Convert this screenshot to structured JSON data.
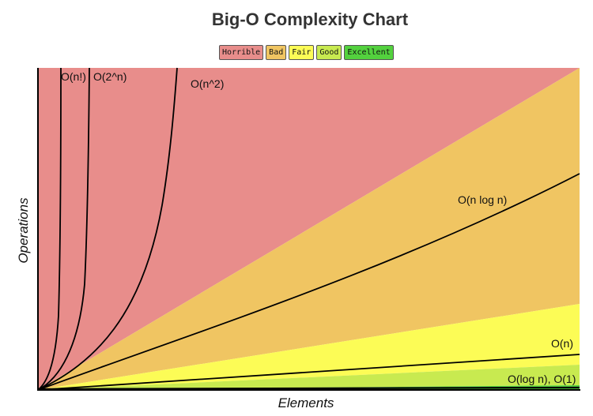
{
  "chart_data": {
    "type": "area",
    "title": "Big-O Complexity Chart",
    "xlabel": "Elements",
    "ylabel": "Operations",
    "legend": [
      {
        "label": "Horrible",
        "color": "#e88d8b"
      },
      {
        "label": "Bad",
        "color": "#f0c562"
      },
      {
        "label": "Fair",
        "color": "#fcfc56"
      },
      {
        "label": "Good",
        "color": "#c8ea50"
      },
      {
        "label": "Excellent",
        "color": "#53d13e"
      }
    ],
    "legend_placement": "top-center",
    "axes": {
      "x_ticks": false,
      "y_ticks": false,
      "grid": false
    },
    "series": [
      {
        "name": "O(n!)"
      },
      {
        "name": "O(2^n)"
      },
      {
        "name": "O(n^2)"
      },
      {
        "name": "O(n log n)"
      },
      {
        "name": "O(n)"
      },
      {
        "name": "O(log n), O(1)"
      }
    ]
  }
}
